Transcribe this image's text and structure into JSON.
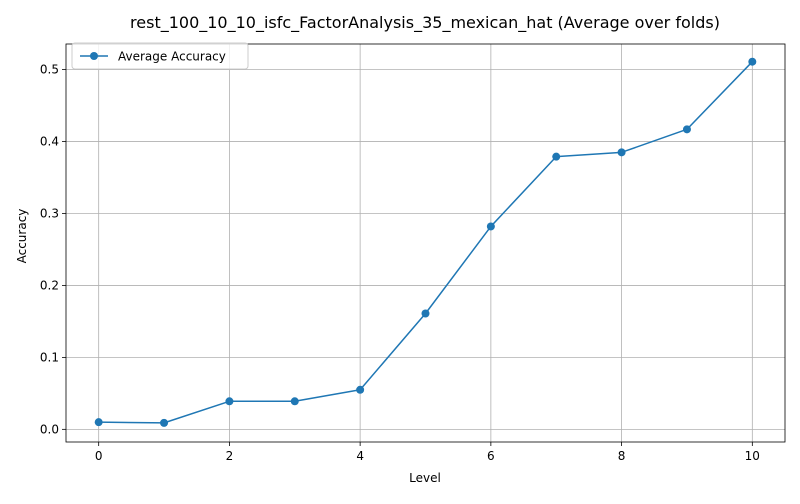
{
  "chart_data": {
    "type": "line",
    "title": "rest_100_10_10_isfc_FactorAnalysis_35_mexican_hat (Average over folds)",
    "xlabel": "Level",
    "ylabel": "Accuracy",
    "xlim": [
      -0.5,
      10.5
    ],
    "ylim": [
      -0.0176,
      0.5356
    ],
    "xticks": [
      0,
      2,
      4,
      6,
      8,
      10
    ],
    "yticks": [
      0.0,
      0.1,
      0.2,
      0.3,
      0.4,
      0.5
    ],
    "xtick_labels": [
      "0",
      "2",
      "4",
      "6",
      "8",
      "10"
    ],
    "ytick_labels": [
      "0.0",
      "0.1",
      "0.2",
      "0.3",
      "0.4",
      "0.5"
    ],
    "grid": true,
    "legend_position": "top-left",
    "series": [
      {
        "name": "Average Accuracy",
        "color": "#1f77b4",
        "marker": "circle",
        "x": [
          0,
          1,
          2,
          3,
          4,
          5,
          6,
          7,
          8,
          9,
          10
        ],
        "y": [
          0.01,
          0.009,
          0.039,
          0.039,
          0.055,
          0.161,
          0.282,
          0.379,
          0.385,
          0.417,
          0.511
        ]
      }
    ]
  }
}
